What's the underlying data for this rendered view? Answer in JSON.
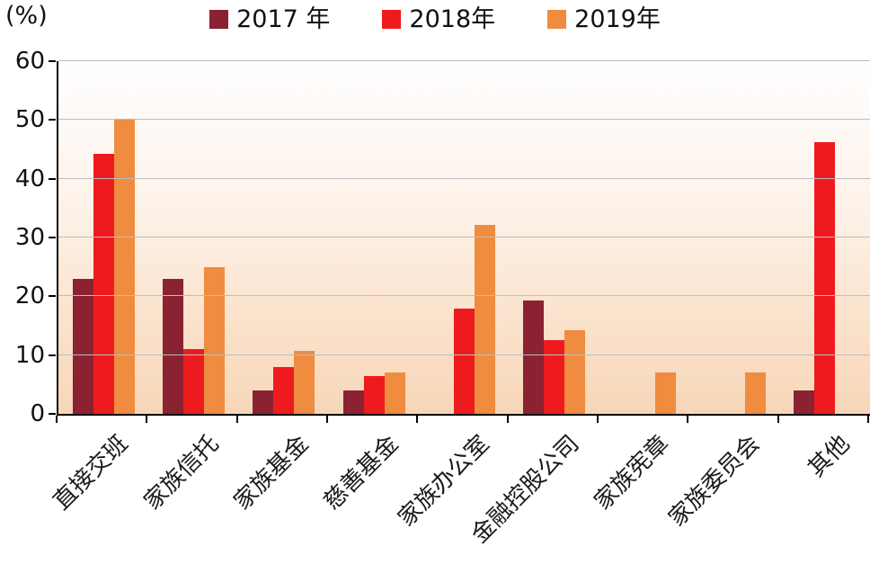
{
  "chart_data": {
    "type": "bar",
    "title": "",
    "ylabel": "(%)",
    "xlabel": "",
    "ylim": [
      0,
      60
    ],
    "ytick_step": 10,
    "grid": true,
    "legend_position": "top",
    "categories": [
      "直接交班",
      "家族信托",
      "家族基金",
      "慈善基金",
      "家族办公室",
      "金融控股公司",
      "家族宪章",
      "家族委员会",
      "其他"
    ],
    "series": [
      {
        "name": "2017 年",
        "color": "#8A2232",
        "values": [
          23,
          23,
          4,
          4,
          0,
          19.3,
          0,
          0,
          4
        ]
      },
      {
        "name": "2018年",
        "color": "#EE1B1E",
        "values": [
          44.3,
          11,
          7.9,
          6.4,
          17.9,
          12.5,
          0,
          0,
          46.3
        ]
      },
      {
        "name": "2019年",
        "color": "#EF8C3F",
        "values": [
          50,
          25,
          10.7,
          7.1,
          32.1,
          14.3,
          7.1,
          7.1,
          0
        ]
      }
    ]
  }
}
